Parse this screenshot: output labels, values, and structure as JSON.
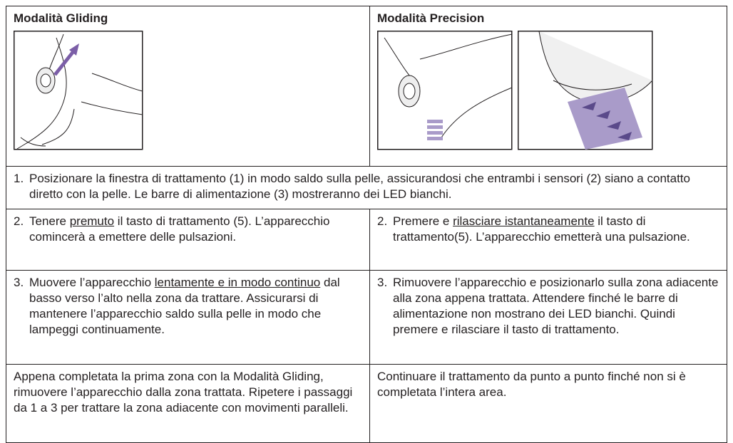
{
  "table": {
    "headers": [
      "Modalità Gliding",
      "Modalità Precision"
    ],
    "step1": {
      "number": "1.",
      "text": "Posizionare la finestra di trattamento (1) in modo saldo sulla pelle, assicurandosi che entrambi i sensori (2) siano a contatto diretto con la pelle. Le barre di alimentazione (3) mostreranno dei LED bianchi."
    },
    "rows": [
      [
        {
          "number": "2.",
          "before": "Tenere ",
          "underlined": "premuto",
          "after": " il tasto di trattamento (5). L’apparecchio comincerà a emettere delle pulsazioni."
        },
        {
          "number": "2.",
          "before": "Premere e ",
          "underlined": "rilasciare istantaneamente",
          "after": " il tasto di trattamento(5). L’apparecchio emetterà una pulsazione."
        }
      ],
      [
        {
          "number": "3.",
          "before": "Muovere l’apparecchio ",
          "underlined": "lentamente e in modo continuo",
          "after": " dal basso verso l’alto nella zona da trattare. Assicurarsi di mantenere l’apparecchio saldo sulla pelle in modo che lampeggi continuamente."
        },
        {
          "number": "3.",
          "text": "Rimuovere l’apparecchio e posizionarlo sulla zona adiacente alla zona appena trattata. Attendere finché le barre di alimentazione non mostrano dei LED bianchi. Quindi premere e rilasciare il tasto di trattamento."
        }
      ],
      [
        {
          "text": "Appena completata la prima zona con la Modalità Gliding, rimuovere l’apparecchio dalla zona trattata. Ripetere i passaggi da 1 a 3 per trattare la zona adiacente con movimenti paralleli."
        },
        {
          "text": "Continuare il trattamento da punto a punto finché non si è completata l’intera area."
        }
      ]
    ]
  }
}
